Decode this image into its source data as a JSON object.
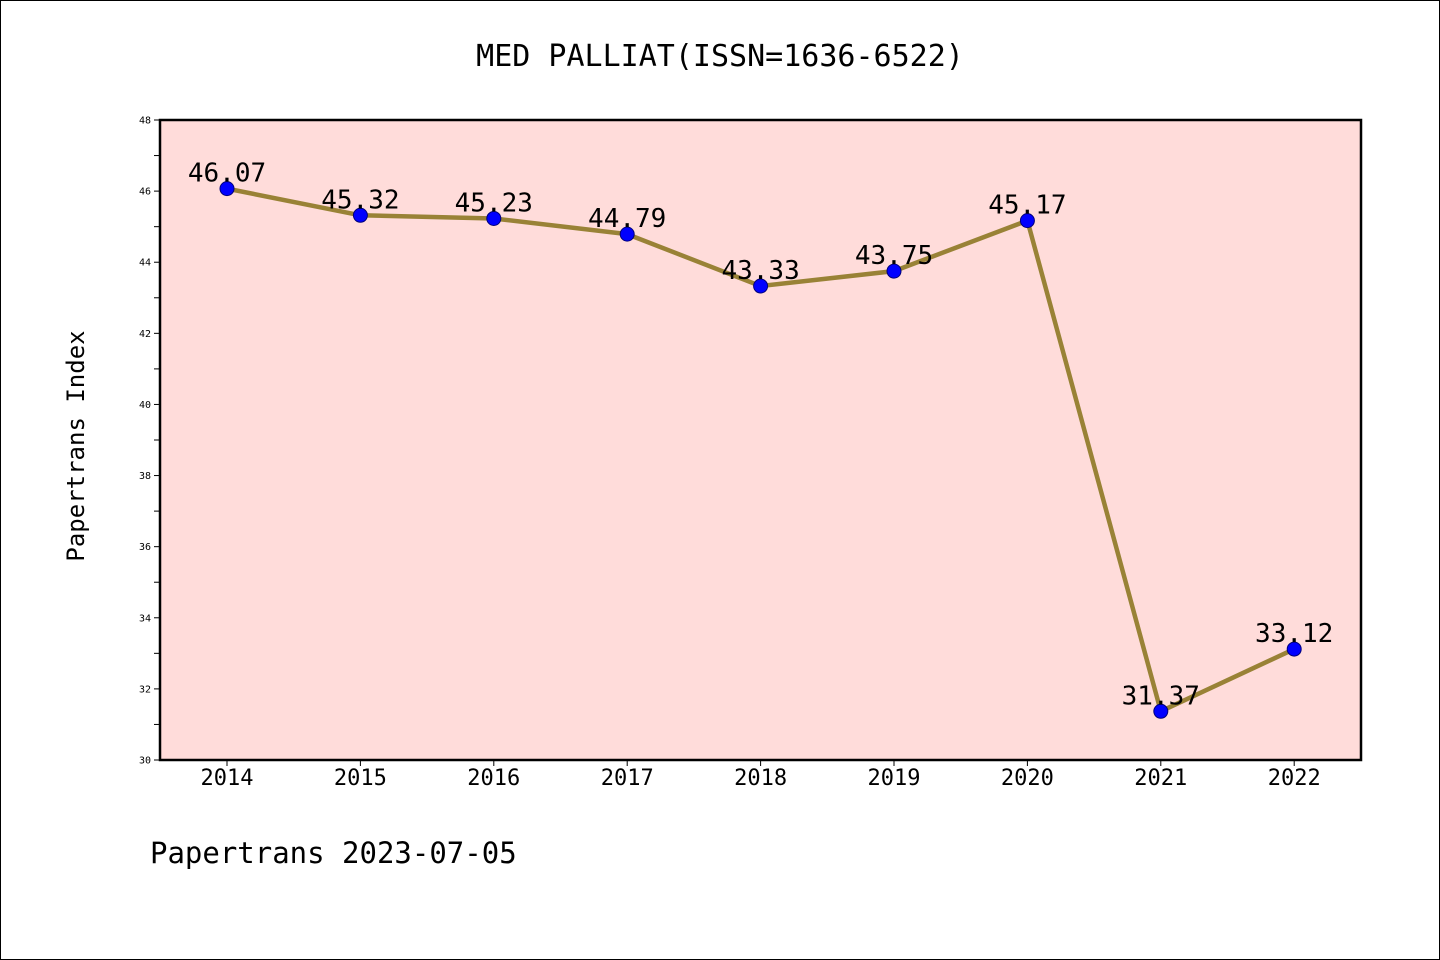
{
  "footer": "Papertrans 2023-07-05",
  "colors": {
    "plot_bg": "#FFDCDA",
    "line": "#998236",
    "marker": "#0000FF"
  },
  "chart_data": {
    "type": "line",
    "title": "MED PALLIAT(ISSN=1636-6522)",
    "xlabel": "",
    "ylabel": "Papertrans Index",
    "categories": [
      "2014",
      "2015",
      "2016",
      "2017",
      "2018",
      "2019",
      "2020",
      "2021",
      "2022"
    ],
    "values": [
      46.07,
      45.32,
      45.23,
      44.79,
      43.33,
      43.75,
      45.17,
      31.37,
      33.12
    ],
    "data_labels": [
      "46.07",
      "45.32",
      "45.23",
      "44.79",
      "43.33",
      "43.75",
      "45.17",
      "31.37",
      "33.12"
    ],
    "ylim": [
      30,
      48
    ],
    "yticks": [
      "30",
      "32",
      "34",
      "36",
      "38",
      "40",
      "42",
      "44",
      "46",
      "48"
    ],
    "grid": false,
    "legend": "none"
  }
}
